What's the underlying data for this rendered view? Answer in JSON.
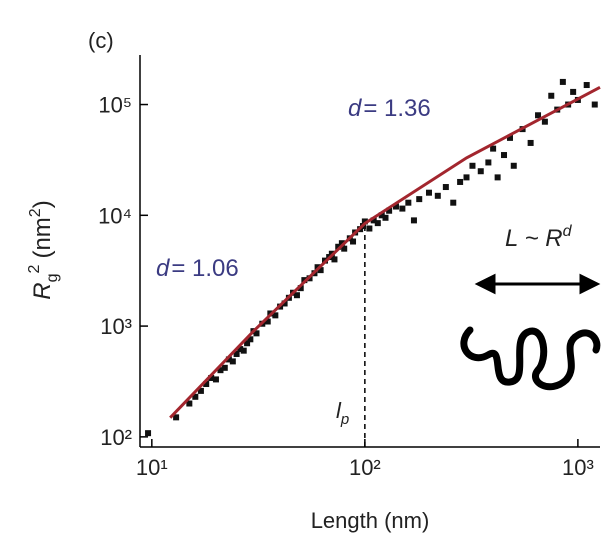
{
  "chart_data": {
    "type": "scatter",
    "panel_label": "(c)",
    "x_label": "Length (nm)",
    "y_label": {
      "symbol": "R",
      "subscript": "g",
      "superscript": "2",
      "unit": "(nm",
      "unit_power": "2",
      "unit_close": ")"
    },
    "log_x": true,
    "log_y": true,
    "xlim": [
      8.8,
      1270
    ],
    "ylim": [
      81,
      280000
    ],
    "xticks": [
      {
        "value": 10,
        "label": "10¹"
      },
      {
        "value": 100,
        "label": "10²"
      },
      {
        "value": 1000,
        "label": "10³"
      }
    ],
    "yticks": [
      {
        "value": 100,
        "label": "10²"
      },
      {
        "value": 1000,
        "label": "10³"
      },
      {
        "value": 10000,
        "label": "10⁴"
      },
      {
        "value": 100000,
        "label": "10⁵"
      }
    ],
    "points": {
      "color": "#111111",
      "x": [
        9.6,
        13,
        15,
        16,
        17,
        18,
        19,
        20,
        21,
        22,
        23,
        24,
        25,
        26,
        27,
        28,
        29,
        30,
        31,
        33,
        35,
        36,
        38,
        40,
        42,
        44,
        46,
        48,
        50,
        52,
        55,
        58,
        60,
        62,
        65,
        68,
        70,
        72,
        75,
        78,
        80,
        85,
        88,
        90,
        95,
        98,
        100,
        105,
        110,
        115,
        120,
        125,
        130,
        140,
        150,
        160,
        170,
        180,
        200,
        220,
        240,
        260,
        280,
        300,
        320,
        350,
        380,
        400,
        420,
        450,
        480,
        500,
        550,
        600,
        650,
        700,
        750,
        800,
        850,
        900,
        950,
        1000,
        1100,
        1200
      ],
      "y": [
        108,
        150,
        200,
        230,
        260,
        300,
        340,
        330,
        400,
        420,
        500,
        480,
        560,
        620,
        600,
        700,
        760,
        900,
        860,
        1050,
        1100,
        1300,
        1250,
        1500,
        1600,
        1800,
        2000,
        1900,
        2200,
        2600,
        2700,
        3000,
        3400,
        3200,
        3900,
        4200,
        4500,
        4000,
        5200,
        5600,
        5000,
        6200,
        5800,
        7000,
        7500,
        8000,
        8800,
        7600,
        9000,
        8500,
        10000,
        9500,
        11000,
        12000,
        11500,
        13000,
        9000,
        14000,
        16000,
        15000,
        18000,
        13000,
        20000,
        22000,
        28000,
        25000,
        30000,
        40000,
        22000,
        35000,
        50000,
        28000,
        60000,
        45000,
        80000,
        70000,
        120000,
        90000,
        160000,
        100000,
        130000,
        110000,
        150000,
        100000
      ]
    },
    "fit": {
      "color": "#a3262e",
      "x": [
        12.2,
        30,
        100,
        300,
        1270
      ],
      "y": [
        149,
        900,
        8460,
        33000,
        143000
      ]
    },
    "reference_line": {
      "x": 100,
      "y": 8460,
      "symbol": "l",
      "subscript": "p"
    },
    "annotations": {
      "high": {
        "symbol": "d",
        "text": "= 1.36"
      },
      "low": {
        "symbol": "d",
        "text": "= 1.06"
      },
      "scaling": {
        "left": "L ~ R",
        "power": "d"
      }
    }
  }
}
